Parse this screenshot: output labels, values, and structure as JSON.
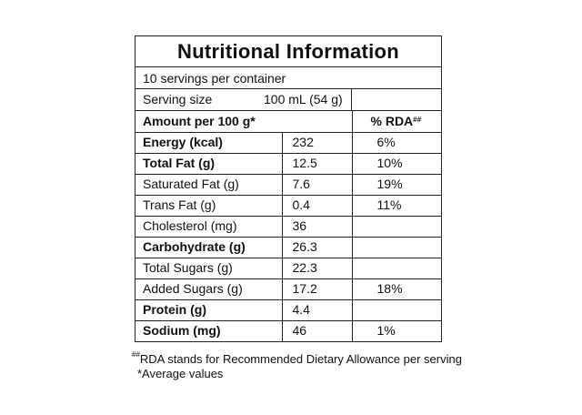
{
  "title": "Nutritional Information",
  "servings_per_container": "10 servings per container",
  "serving_size": {
    "label": "Serving size",
    "value": "100 mL (54 g)"
  },
  "header": {
    "amount_label": "Amount per 100 g*",
    "rda_label": "% RDA",
    "rda_mark": "##"
  },
  "rows": [
    {
      "name": "Energy (kcal)",
      "value": "232",
      "rda": "6%"
    },
    {
      "name": "Total Fat (g)",
      "value": "12.5",
      "rda": "10%"
    },
    {
      "name": "Saturated Fat (g)",
      "value": "7.6",
      "rda": "19%"
    },
    {
      "name": "Trans Fat (g)",
      "value": "0.4",
      "rda": "11%"
    },
    {
      "name": "Cholesterol (mg)",
      "value": "36",
      "rda": ""
    },
    {
      "name": "Carbohydrate (g)",
      "value": "26.3",
      "rda": ""
    },
    {
      "name": "Total Sugars (g)",
      "value": "22.3",
      "rda": ""
    },
    {
      "name": "Added Sugars (g)",
      "value": "17.2",
      "rda": "18%"
    },
    {
      "name": "Protein (g)",
      "value": "4.4",
      "rda": ""
    },
    {
      "name": "Sodium (mg)",
      "value": "46",
      "rda": "1%"
    }
  ],
  "footnotes": {
    "rda_note_mark": "##",
    "rda_note": "RDA stands for Recommended Dietary Allowance per serving",
    "average_note": "*Average values"
  }
}
